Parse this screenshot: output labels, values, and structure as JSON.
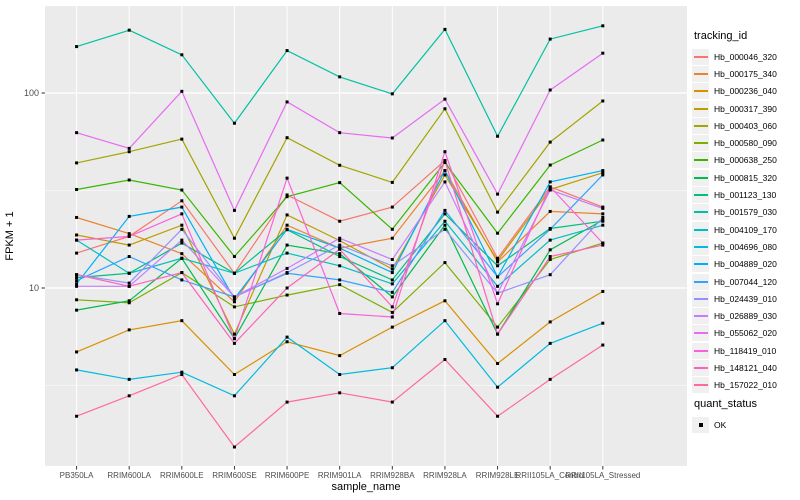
{
  "figure": {
    "y_axis_title": "FPKM + 1",
    "x_axis_title": "sample_name"
  },
  "chart_data": {
    "type": "line",
    "title": "",
    "xlabel": "sample_name",
    "ylabel": "FPKM + 1",
    "y_scale": "log10",
    "ylim": [
      1.2,
      280
    ],
    "y_tick_labels": [
      "10",
      "100"
    ],
    "y_major_breaks": [
      10,
      100
    ],
    "y_minor_breaks": [
      3.162,
      31.62
    ],
    "grid": "on",
    "legend_position": "right",
    "legend_title": "tracking_id",
    "point_legend_title": "quant_status",
    "point_legend_items": [
      {
        "label": "OK",
        "marker": "black-square"
      }
    ],
    "panel_bg": "#EBEBEB",
    "grid_color": "#FFFFFF",
    "point_color": "#000000",
    "axis_text_color": "#4D4D4D",
    "categories": [
      "PB350LA",
      "RRIM600LA",
      "RRIM600LE",
      "RRIM600SE",
      "RRIM600PE",
      "RRIM901LA",
      "RRIM928BA",
      "RRIM928LA",
      "RRIM928LE",
      "RRII105LA_Control",
      "RRII105LA_Stressed"
    ],
    "series": [
      {
        "name": "Hb_000046_320",
        "color": "#F8766D",
        "values": [
          15.1,
          18.4,
          28,
          11.9,
          30,
          22,
          26,
          45,
          14.2,
          33,
          26
        ]
      },
      {
        "name": "Hb_000175_340",
        "color": "#EA8331",
        "values": [
          23,
          19,
          15,
          8.5,
          21,
          16,
          18,
          40,
          13.6,
          24.7,
          24
        ]
      },
      {
        "name": "Hb_000236_040",
        "color": "#D89000",
        "values": [
          4.7,
          6.1,
          6.8,
          3.6,
          5.3,
          4.5,
          6.3,
          8.6,
          4.1,
          6.7,
          9.6
        ]
      },
      {
        "name": "Hb_000317_390",
        "color": "#C09B00",
        "values": [
          18.7,
          16.6,
          21,
          5.8,
          23.7,
          17.5,
          12.5,
          38,
          13.8,
          32,
          39
        ]
      },
      {
        "name": "Hb_000403_060",
        "color": "#A3A500",
        "values": [
          43.8,
          50,
          58,
          18,
          59,
          42.6,
          34.8,
          83,
          24.5,
          56,
          91
        ]
      },
      {
        "name": "Hb_000580_090",
        "color": "#7CAE00",
        "values": [
          8.7,
          8.4,
          12,
          8.0,
          9.2,
          10.4,
          7.5,
          13.5,
          6.3,
          14,
          17
        ]
      },
      {
        "name": "Hb_000638_250",
        "color": "#39B600",
        "values": [
          32,
          35.8,
          31.8,
          14.5,
          29.4,
          34.7,
          20,
          44,
          19.1,
          42.7,
          57.4
        ]
      },
      {
        "name": "Hb_000815_320",
        "color": "#00BB4E",
        "values": [
          7.7,
          8.6,
          14.2,
          5.5,
          16.6,
          15,
          9,
          21,
          5.8,
          15.7,
          22.3
        ]
      },
      {
        "name": "Hb_001123_130",
        "color": "#00BF7D",
        "values": [
          11.3,
          11.9,
          17,
          11.9,
          19.9,
          14.5,
          11,
          24,
          13,
          20.2,
          22
        ]
      },
      {
        "name": "Hb_001579_030",
        "color": "#00C1A3",
        "values": [
          173,
          210,
          157,
          70,
          165,
          121,
          99,
          212,
          60,
          189,
          221
        ]
      },
      {
        "name": "Hb_004109_170",
        "color": "#00BFC4",
        "values": [
          17.6,
          11.9,
          14.2,
          11.9,
          15.1,
          13,
          10.5,
          22,
          10.2,
          17.6,
          21
        ]
      },
      {
        "name": "Hb_004696_080",
        "color": "#00BAE0",
        "values": [
          3.8,
          3.4,
          3.7,
          2.8,
          5.6,
          3.6,
          3.9,
          6.8,
          3.1,
          5.2,
          6.6
        ]
      },
      {
        "name": "Hb_004889_020",
        "color": "#00B0F6",
        "values": [
          10.5,
          23.3,
          26,
          8.8,
          20,
          16,
          12,
          40,
          11.4,
          35,
          40
        ]
      },
      {
        "name": "Hb_007044_120",
        "color": "#35A2FF",
        "values": [
          10.9,
          14.5,
          11,
          9.0,
          11.9,
          11,
          9.5,
          25,
          11.4,
          20,
          38
        ]
      },
      {
        "name": "Hb_024439_010",
        "color": "#9590FF",
        "values": [
          11.7,
          10.6,
          20,
          9.0,
          12,
          16.6,
          13,
          20,
          9.4,
          11.7,
          23
        ]
      },
      {
        "name": "Hb_026889_030",
        "color": "#C77CFF",
        "values": [
          10.2,
          10.2,
          17.6,
          9.0,
          12.6,
          18,
          14,
          35,
          9.4,
          31.8,
          25.6
        ]
      },
      {
        "name": "Hb_055062_020",
        "color": "#E76BF3",
        "values": [
          62.6,
          52,
          102,
          25,
          90,
          62.6,
          58.8,
          93,
          30.3,
          103.6,
          160
        ]
      },
      {
        "name": "Hb_118419_010",
        "color": "#FA62DB",
        "values": [
          17.6,
          18.4,
          24,
          5.5,
          36.6,
          7.4,
          7.1,
          50,
          8.3,
          33,
          17
        ]
      },
      {
        "name": "Hb_148121_040",
        "color": "#FF62BC",
        "values": [
          11.7,
          10.2,
          12,
          5.2,
          10,
          15.8,
          8,
          45,
          5.8,
          14.5,
          16.6
        ]
      },
      {
        "name": "Hb_157022_010",
        "color": "#FF6A98",
        "values": [
          2.2,
          2.8,
          3.6,
          1.53,
          2.6,
          2.9,
          2.6,
          4.3,
          2.2,
          3.4,
          5.1
        ]
      }
    ]
  }
}
